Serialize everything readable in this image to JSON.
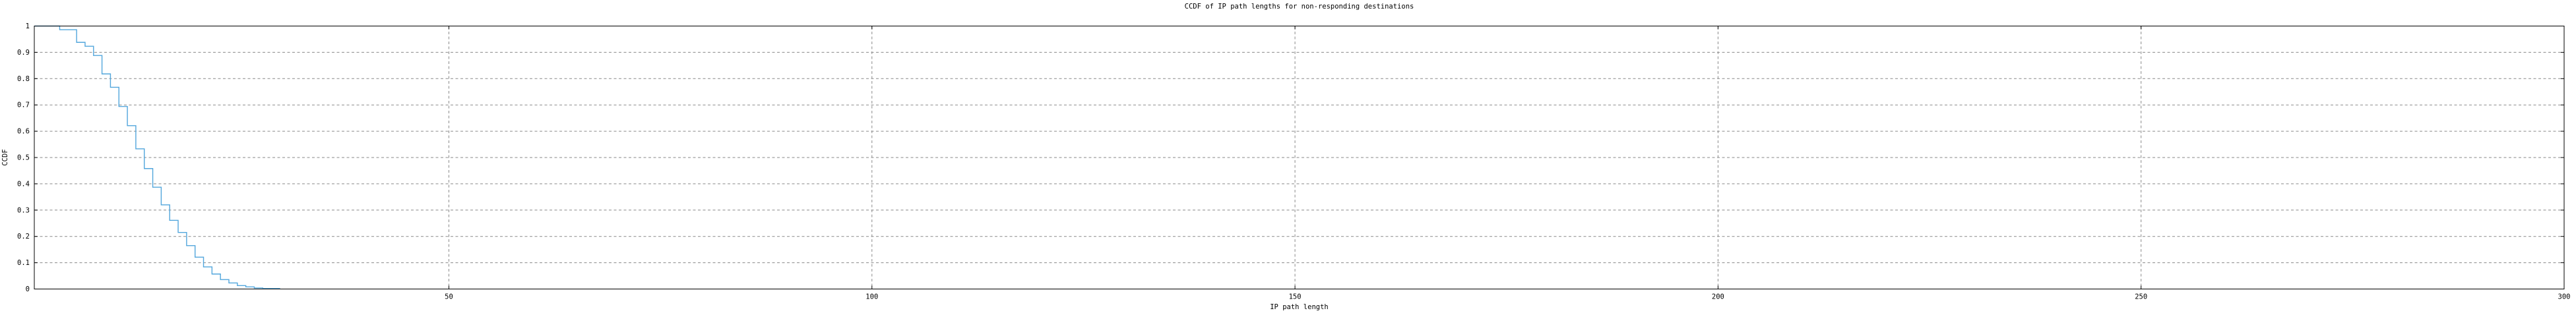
{
  "chart_data": {
    "type": "line",
    "subtype": "step-ccdf",
    "title": "CCDF of IP path lengths for non-responding destinations",
    "xlabel": "IP path length",
    "ylabel": "CCDF",
    "xlim": [
      1,
      300
    ],
    "ylim": [
      0,
      1
    ],
    "xticks": [
      50,
      100,
      150,
      200,
      250,
      300
    ],
    "xtick_labels": [
      "50",
      "100",
      "150",
      "200",
      "250",
      "300"
    ],
    "yticks": [
      0,
      0.1,
      0.2,
      0.3,
      0.4,
      0.5,
      0.6,
      0.7,
      0.8,
      0.9,
      1
    ],
    "ytick_labels": [
      "0",
      "0.1",
      "0.2",
      "0.3",
      "0.4",
      "0.5",
      "0.6",
      "0.7",
      "0.8",
      "0.9",
      "1"
    ],
    "grid": true,
    "legend_position": "none",
    "colors": {
      "curve": "#52a6dc",
      "grid": "#8a8a8a",
      "border": "#000000",
      "background": "#ffffff",
      "text": "#000000"
    },
    "series": [
      {
        "name": "CCDF of IP path lengths",
        "style": "steps",
        "steps": [
          [
            1,
            1.0
          ],
          [
            4,
            0.986
          ],
          [
            6,
            0.938
          ],
          [
            7,
            0.923
          ],
          [
            8,
            0.888
          ],
          [
            9,
            0.818
          ],
          [
            10,
            0.767
          ],
          [
            11,
            0.694
          ],
          [
            12,
            0.621
          ],
          [
            13,
            0.533
          ],
          [
            14,
            0.458
          ],
          [
            15,
            0.387
          ],
          [
            16,
            0.32
          ],
          [
            17,
            0.261
          ],
          [
            18,
            0.215
          ],
          [
            19,
            0.165
          ],
          [
            20,
            0.121
          ],
          [
            21,
            0.084
          ],
          [
            22,
            0.057
          ],
          [
            23,
            0.036
          ],
          [
            24,
            0.023
          ],
          [
            25,
            0.013
          ],
          [
            26,
            0.008
          ],
          [
            27,
            0.004
          ],
          [
            28,
            0.002
          ],
          [
            30,
            0.0
          ]
        ]
      }
    ]
  }
}
